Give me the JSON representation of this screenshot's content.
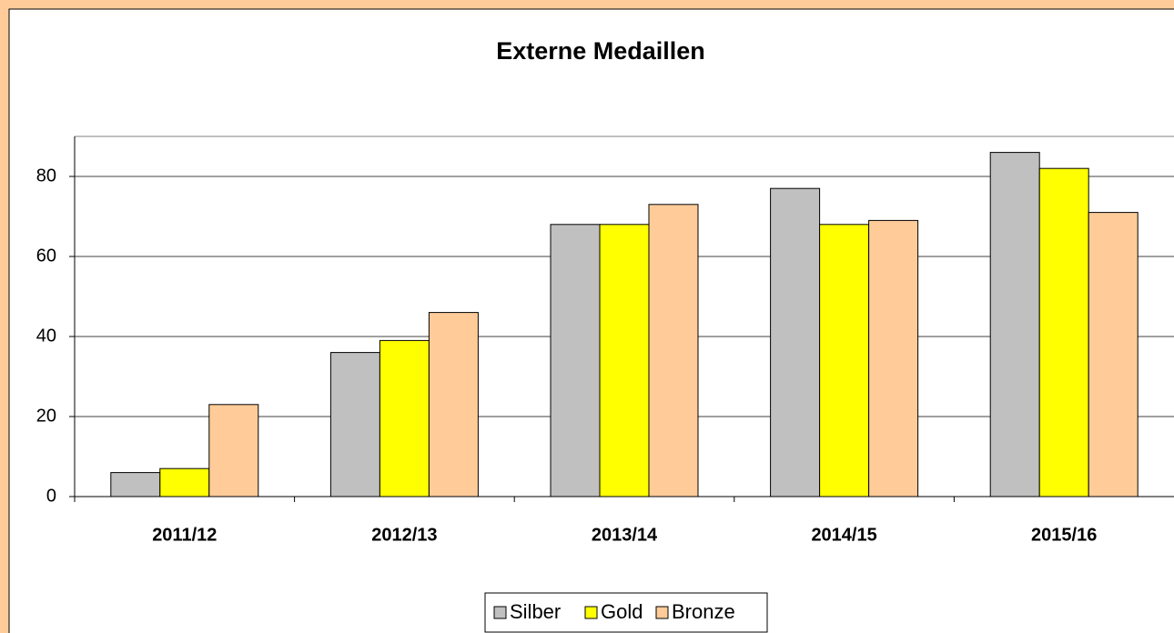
{
  "chart_data": {
    "type": "bar",
    "title": "Externe Medaillen",
    "categories": [
      "2011/12",
      "2012/13",
      "2013/14",
      "2014/15",
      "2015/16"
    ],
    "series": [
      {
        "name": "Silber",
        "color": "#C0C0C0",
        "values": [
          6,
          36,
          68,
          77,
          86
        ]
      },
      {
        "name": "Gold",
        "color": "#FFFF00",
        "values": [
          7,
          39,
          68,
          68,
          82
        ]
      },
      {
        "name": "Bronze",
        "color": "#FFCC99",
        "values": [
          23,
          46,
          73,
          69,
          71
        ]
      }
    ],
    "ylim": [
      0,
      90
    ],
    "yticks": [
      0,
      20,
      40,
      60,
      80
    ],
    "grid": true,
    "legend": "bottom"
  }
}
